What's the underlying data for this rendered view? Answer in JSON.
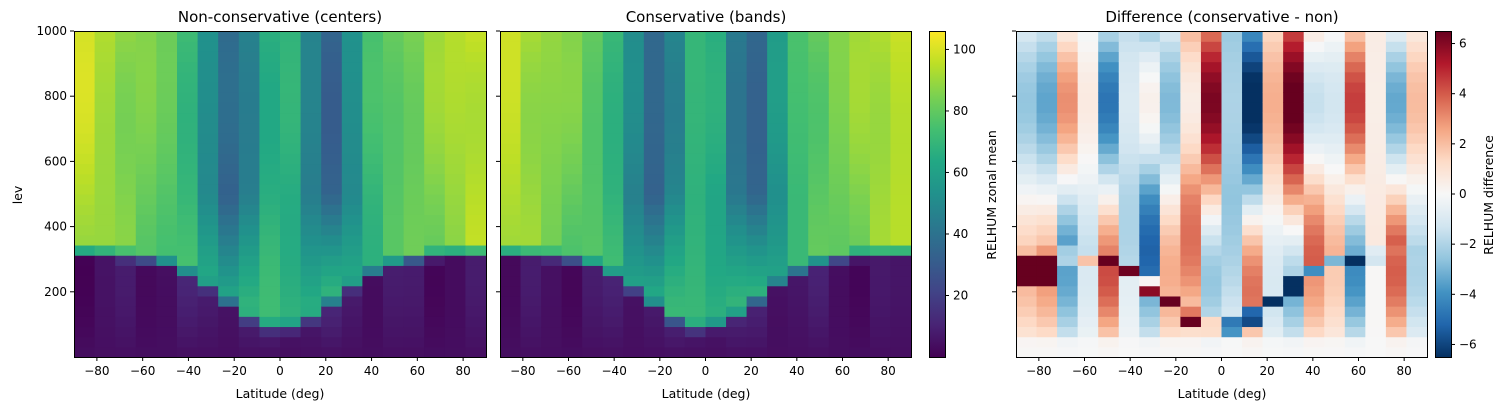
{
  "chart_data": [
    {
      "type": "heatmap",
      "title": "Non-conservative (centers)",
      "xlabel": "Latitude (deg)",
      "ylabel": "lev",
      "xlim": [
        -90,
        90
      ],
      "ylim": [
        0,
        1000
      ],
      "xticks": [
        "-80",
        "-60",
        "-40",
        "-20",
        "0",
        "20",
        "40",
        "60",
        "80"
      ],
      "yticks": [
        "200",
        "400",
        "600",
        "800",
        "1000"
      ],
      "colormap": "viridis",
      "value_range": [
        0,
        106
      ]
    },
    {
      "type": "heatmap",
      "title": "Conservative (bands)",
      "xlabel": "Latitude (deg)",
      "ylabel": "",
      "xlim": [
        -90,
        90
      ],
      "ylim": [
        0,
        1000
      ],
      "xticks": [
        "-80",
        "-60",
        "-40",
        "-20",
        "0",
        "20",
        "40",
        "60",
        "80"
      ],
      "colormap": "viridis",
      "value_range": [
        0,
        106
      ],
      "colorbar": {
        "label": "RELHUM zonal mean",
        "ticks": [
          "20",
          "40",
          "60",
          "80",
          "100"
        ]
      }
    },
    {
      "type": "heatmap",
      "title": "Difference (conservative - non)",
      "xlabel": "Latitude (deg)",
      "ylabel": "",
      "xlim": [
        -90,
        90
      ],
      "ylim": [
        0,
        1000
      ],
      "xticks": [
        "-80",
        "-60",
        "-40",
        "-20",
        "0",
        "20",
        "40",
        "60",
        "80"
      ],
      "colormap": "RdBu_r",
      "value_range": [
        -6.5,
        6.5
      ],
      "colorbar": {
        "label": "RELHUM difference",
        "ticks": [
          "−6",
          "−4",
          "−2",
          "0",
          "2",
          "4",
          "6"
        ]
      }
    }
  ]
}
